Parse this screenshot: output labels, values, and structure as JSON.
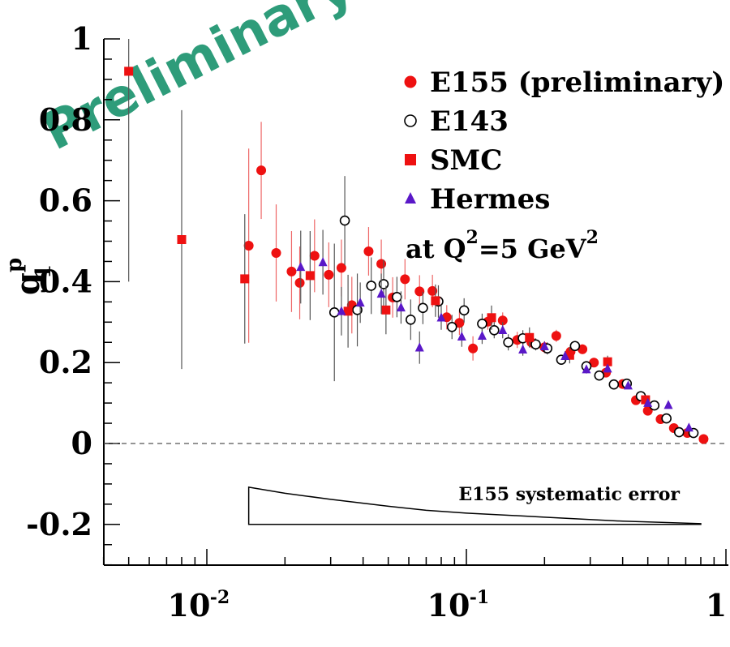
{
  "chart_data": {
    "type": "scatter",
    "title": "",
    "xlabel": "",
    "ylabel": "g1p",
    "ylabel_main": "g",
    "ylabel_sub": "1",
    "ylabel_sup": "p",
    "xscale": "log",
    "xlim": [
      0.004,
      1.0
    ],
    "ylim": [
      -0.3,
      1.0
    ],
    "yticks": [
      {
        "value": 1.0,
        "label": "1"
      },
      {
        "value": 0.8,
        "label": "0.8"
      },
      {
        "value": 0.6,
        "label": "0.6"
      },
      {
        "value": 0.4,
        "label": "0.4"
      },
      {
        "value": 0.2,
        "label": "0.2"
      },
      {
        "value": 0.0,
        "label": "0"
      },
      {
        "value": -0.2,
        "label": "-0.2"
      }
    ],
    "xticks": [
      {
        "value": 0.01,
        "base": "10",
        "exp": "-2"
      },
      {
        "value": 0.1,
        "base": "10",
        "exp": "-1"
      },
      {
        "value": 1.0,
        "base": "1",
        "exp": ""
      }
    ],
    "zero_line": true,
    "watermark": "Preliminary",
    "annotation": {
      "prefix": "at Q",
      "sup1": "2",
      "mid": "=5 GeV",
      "sup2": "2"
    },
    "systematic_label": "E155  systematic error",
    "systematic_band": {
      "x": [
        0.0145,
        0.02,
        0.03,
        0.05,
        0.07,
        0.1,
        0.2,
        0.4,
        0.8
      ],
      "upper": [
        -0.108,
        -0.123,
        -0.138,
        -0.155,
        -0.165,
        -0.172,
        -0.182,
        -0.192,
        -0.198
      ],
      "lower": -0.2
    },
    "series": [
      {
        "name": "E155 (preliminary)",
        "marker": "circle-filled",
        "color": "#ee1111",
        "errcolor": "#ee6666",
        "points": [
          [
            0.0145,
            0.489,
            0.24
          ],
          [
            0.0162,
            0.675,
            0.12
          ],
          [
            0.0185,
            0.471,
            0.12
          ],
          [
            0.0212,
            0.425,
            0.1
          ],
          [
            0.0228,
            0.397,
            0.09
          ],
          [
            0.026,
            0.464,
            0.09
          ],
          [
            0.0295,
            0.417,
            0.08
          ],
          [
            0.033,
            0.434,
            0.07
          ],
          [
            0.0362,
            0.342,
            0.07
          ],
          [
            0.042,
            0.475,
            0.06
          ],
          [
            0.047,
            0.444,
            0.06
          ],
          [
            0.052,
            0.361,
            0.05
          ],
          [
            0.058,
            0.406,
            0.05
          ],
          [
            0.066,
            0.376,
            0.04
          ],
          [
            0.074,
            0.377,
            0.04
          ],
          [
            0.084,
            0.312,
            0.03
          ],
          [
            0.094,
            0.298,
            0.03
          ],
          [
            0.106,
            0.235,
            0.03
          ],
          [
            0.121,
            0.301,
            0.02
          ],
          [
            0.138,
            0.304,
            0.02
          ],
          [
            0.157,
            0.256,
            0.02
          ],
          [
            0.178,
            0.25,
            0.015
          ],
          [
            0.2,
            0.238,
            0.015
          ],
          [
            0.222,
            0.266,
            0.015
          ],
          [
            0.252,
            0.227,
            0.012
          ],
          [
            0.28,
            0.233,
            0.012
          ],
          [
            0.31,
            0.2,
            0.01
          ],
          [
            0.345,
            0.175,
            0.01
          ],
          [
            0.4,
            0.147,
            0.01
          ],
          [
            0.45,
            0.107,
            0.008
          ],
          [
            0.5,
            0.081,
            0.008
          ],
          [
            0.56,
            0.06,
            0.006
          ],
          [
            0.63,
            0.038,
            0.005
          ],
          [
            0.71,
            0.026,
            0.004
          ],
          [
            0.82,
            0.011,
            0.003
          ]
        ]
      },
      {
        "name": "E143",
        "marker": "circle-open",
        "color": "#000000",
        "errcolor": "#555555",
        "points": [
          [
            0.031,
            0.324,
            0.17
          ],
          [
            0.034,
            0.551,
            0.11
          ],
          [
            0.038,
            0.33,
            0.09
          ],
          [
            0.043,
            0.39,
            0.07
          ],
          [
            0.048,
            0.394,
            0.06
          ],
          [
            0.054,
            0.362,
            0.05
          ],
          [
            0.061,
            0.306,
            0.05
          ],
          [
            0.068,
            0.335,
            0.04
          ],
          [
            0.078,
            0.351,
            0.04
          ],
          [
            0.088,
            0.288,
            0.03
          ],
          [
            0.098,
            0.329,
            0.03
          ],
          [
            0.115,
            0.296,
            0.025
          ],
          [
            0.128,
            0.28,
            0.02
          ],
          [
            0.145,
            0.25,
            0.02
          ],
          [
            0.165,
            0.26,
            0.02
          ],
          [
            0.185,
            0.245,
            0.015
          ],
          [
            0.205,
            0.235,
            0.015
          ],
          [
            0.232,
            0.207,
            0.012
          ],
          [
            0.262,
            0.241,
            0.012
          ],
          [
            0.29,
            0.191,
            0.01
          ],
          [
            0.325,
            0.168,
            0.01
          ],
          [
            0.37,
            0.146,
            0.008
          ],
          [
            0.415,
            0.148,
            0.008
          ],
          [
            0.47,
            0.117,
            0.007
          ],
          [
            0.53,
            0.094,
            0.006
          ],
          [
            0.59,
            0.062,
            0.005
          ],
          [
            0.66,
            0.028,
            0.004
          ],
          [
            0.75,
            0.026,
            0.003
          ]
        ]
      },
      {
        "name": "SMC",
        "marker": "square-filled",
        "color": "#ee1111",
        "errcolor": "#555555",
        "points": [
          [
            0.005,
            0.92,
            0.52
          ],
          [
            0.008,
            0.504,
            0.32
          ],
          [
            0.014,
            0.407,
            0.16
          ],
          [
            0.025,
            0.415,
            0.11
          ],
          [
            0.035,
            0.327,
            0.09
          ],
          [
            0.049,
            0.33,
            0.06
          ],
          [
            0.076,
            0.353,
            0.04
          ],
          [
            0.125,
            0.311,
            0.03
          ],
          [
            0.175,
            0.262,
            0.025
          ],
          [
            0.25,
            0.218,
            0.02
          ],
          [
            0.35,
            0.202,
            0.015
          ],
          [
            0.49,
            0.108,
            0.01
          ]
        ]
      },
      {
        "name": "Hermes",
        "marker": "triangle-filled",
        "color": "#5a18c8",
        "errcolor": "#555555",
        "points": [
          [
            0.023,
            0.436,
            0.09
          ],
          [
            0.028,
            0.448,
            0.08
          ],
          [
            0.033,
            0.327,
            0.06
          ],
          [
            0.039,
            0.348,
            0.05
          ],
          [
            0.047,
            0.37,
            0.05
          ],
          [
            0.056,
            0.336,
            0.04
          ],
          [
            0.066,
            0.237,
            0.04
          ],
          [
            0.08,
            0.311,
            0.03
          ],
          [
            0.096,
            0.264,
            0.025
          ],
          [
            0.115,
            0.266,
            0.02
          ],
          [
            0.138,
            0.28,
            0.02
          ],
          [
            0.165,
            0.232,
            0.015
          ],
          [
            0.2,
            0.24,
            0.012
          ],
          [
            0.24,
            0.216,
            0.012
          ],
          [
            0.29,
            0.183,
            0.01
          ],
          [
            0.35,
            0.185,
            0.01
          ],
          [
            0.42,
            0.143,
            0.008
          ],
          [
            0.5,
            0.1,
            0.007
          ],
          [
            0.6,
            0.095,
            0.005
          ],
          [
            0.72,
            0.039,
            0.004
          ]
        ]
      }
    ]
  }
}
